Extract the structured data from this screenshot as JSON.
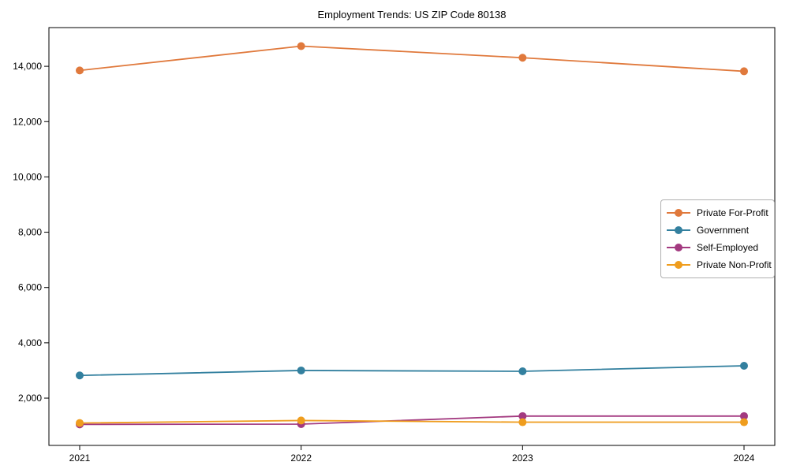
{
  "chart_data": {
    "type": "line",
    "title": "Employment Trends: US ZIP Code 80138",
    "xlabel": "",
    "ylabel": "",
    "categories": [
      "2021",
      "2022",
      "2023",
      "2024"
    ],
    "series": [
      {
        "name": "Private For-Profit",
        "color": "#e0793c",
        "values": [
          13850,
          14730,
          14310,
          13820
        ]
      },
      {
        "name": "Government",
        "color": "#33809f",
        "values": [
          2820,
          3000,
          2970,
          3170
        ]
      },
      {
        "name": "Self-Employed",
        "color": "#a33a80",
        "values": [
          1050,
          1060,
          1350,
          1350
        ]
      },
      {
        "name": "Private Non-Profit",
        "color": "#ef9d1e",
        "values": [
          1100,
          1190,
          1130,
          1130
        ]
      }
    ],
    "ylim": [
      290,
      15400
    ],
    "yticks": [
      2000,
      4000,
      6000,
      8000,
      10000,
      12000,
      14000
    ],
    "ytick_labels": [
      "2,000",
      "4,000",
      "6,000",
      "8,000",
      "10,000",
      "12,000",
      "14,000"
    ],
    "legend_position": "center right",
    "grid": false,
    "marker": "circle",
    "axis_color": "#000000",
    "tick_label_color": "#000000",
    "legend_border_color": "#b0b0b0"
  }
}
